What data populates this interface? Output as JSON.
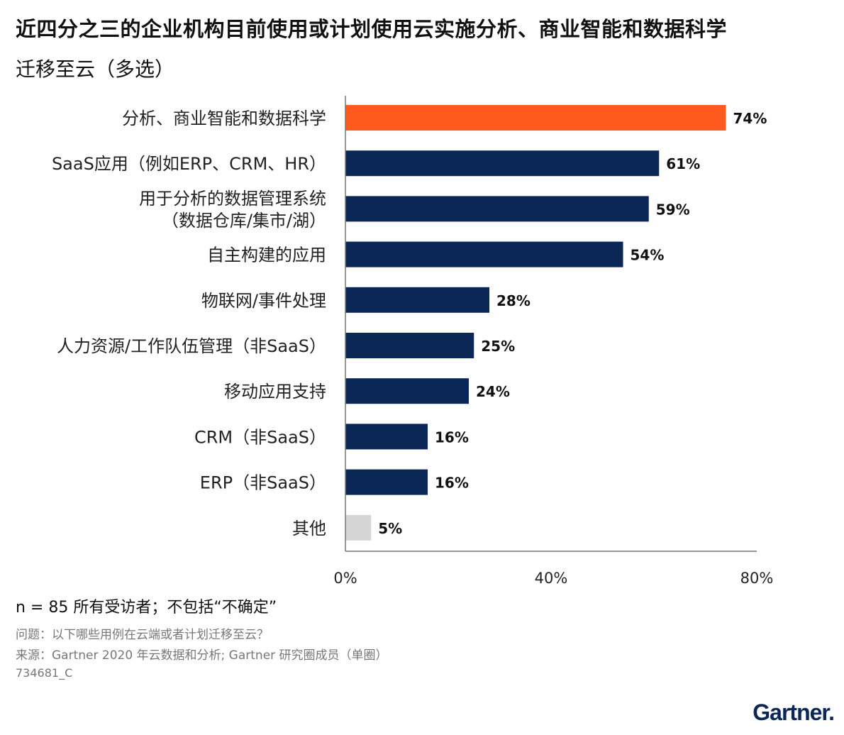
{
  "title": "近四分之三的企业机构目前使用或计划使用云实施分析、商业智能和数据科学",
  "subtitle": "迁移至云（多选）",
  "chart_data": {
    "type": "bar",
    "orientation": "horizontal",
    "categories": [
      [
        "分析、商业智能和数据科学"
      ],
      [
        "SaaS应用（例如ERP、CRM、HR）"
      ],
      [
        "用于分析的数据管理系统",
        "（数据仓库/集市/湖）"
      ],
      [
        "自主构建的应用"
      ],
      [
        "物联网/事件处理"
      ],
      [
        "人力资源/工作队伍管理（非SaaS）"
      ],
      [
        "移动应用支持"
      ],
      [
        "CRM（非SaaS）"
      ],
      [
        "ERP（非SaaS）"
      ],
      [
        "其他"
      ]
    ],
    "values": [
      74,
      61,
      59,
      54,
      28,
      25,
      24,
      16,
      16,
      5
    ],
    "data_labels": [
      "74%",
      "61%",
      "59%",
      "54%",
      "28%",
      "25%",
      "24%",
      "16%",
      "16%",
      "5%"
    ],
    "bar_colors": [
      "#fe5a1d",
      "#0b2756",
      "#0b2756",
      "#0b2756",
      "#0b2756",
      "#0b2756",
      "#0b2756",
      "#0b2756",
      "#0b2756",
      "#d6d6d6"
    ],
    "xlim": [
      0,
      80
    ],
    "xticks": [
      0,
      40,
      80
    ],
    "xtick_labels": [
      "0%",
      "40%",
      "80%"
    ],
    "grid": false
  },
  "footer": {
    "note": "n = 85 所有受访者；不包括“不确定”",
    "question": "问题：以下哪些用例在云端或者计划迁移至云？",
    "source": "来源：Gartner 2020 年云数据和分析; Gartner 研究圈成员（单圈）",
    "id": "734681_C",
    "logo": "Gartner."
  }
}
